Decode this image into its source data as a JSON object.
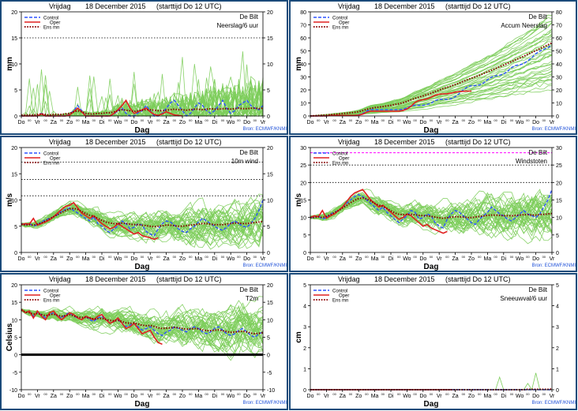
{
  "header": {
    "day": "Vrijdag",
    "date": "18 December 2015",
    "run": "(starttijd Do 12 UTC)"
  },
  "location": "De Bilt",
  "source": "Bron: ECMWF/KNMI",
  "legend": [
    "Control",
    "Oper",
    "Ens mn"
  ],
  "xlabel": "Dag",
  "day_labels": [
    "Do",
    "Vr",
    "Za",
    "Zo",
    "Ma",
    "Di",
    "Wo",
    "Do",
    "Vr",
    "Za",
    "Zo",
    "Ma",
    "Di",
    "Wo",
    "Do",
    "Vr"
  ],
  "colors": {
    "control": "#2e54ff",
    "oper": "#e02020",
    "ensmean": "#8b0000",
    "members": "#7ccd5a",
    "frame": "#1a4a7a",
    "threshold": "#ff00ff"
  },
  "chart_data": [
    {
      "type": "line",
      "name": "precip",
      "title": "Neerslag/6 uur",
      "ylabel": "mm",
      "ylim": [
        0,
        20
      ],
      "yticks": [
        0,
        5,
        10,
        15,
        20
      ],
      "ref_lines": [
        15
      ],
      "control": [
        0,
        0,
        0,
        0,
        0,
        0.5,
        0,
        0,
        0,
        0,
        0,
        0,
        0.3,
        1,
        2,
        1,
        0,
        0,
        0,
        0,
        0,
        0,
        0,
        0.4,
        1,
        1.5,
        0.5,
        0,
        0,
        0.6,
        1,
        2,
        1,
        0,
        0,
        0.5,
        1.5,
        2.5,
        3,
        2,
        1,
        0,
        0.5,
        1.5,
        2.5,
        2,
        1,
        0.5,
        1,
        2,
        3,
        1.5,
        0.5,
        1,
        2,
        2.5,
        3,
        2,
        1.5,
        1.2,
        2
      ],
      "oper": [
        0,
        0,
        0,
        0,
        0,
        0.4,
        0,
        0,
        0,
        0,
        0,
        0,
        0.2,
        0.8,
        1.5,
        0.8,
        0,
        0,
        0,
        0,
        0,
        0,
        0,
        0.5,
        1.2,
        2,
        3,
        1.5,
        0.5,
        0.8,
        1.2,
        1.5,
        0.8,
        0.3,
        0.1,
        0.4,
        0.8,
        0.5,
        0.2,
        0.1,
        0
      ],
      "ens_mean": [
        0.2,
        0.2,
        0.2,
        0.2,
        0.3,
        0.4,
        0.3,
        0.2,
        0.3,
        0.3,
        0.3,
        0.4,
        0.5,
        0.8,
        1,
        0.8,
        0.5,
        0.4,
        0.4,
        0.5,
        0.5,
        0.6,
        0.6,
        0.8,
        1,
        1.2,
        1.1,
        1,
        0.9,
        1,
        1.1,
        1.2,
        1.2,
        1.1,
        1,
        1,
        1.1,
        1.2,
        1.3,
        1.2,
        1.2,
        1.1,
        1.2,
        1.3,
        1.3,
        1.2,
        1.3,
        1.4,
        1.3,
        1.3,
        1.4,
        1.4,
        1.3,
        1.4,
        1.5,
        1.4,
        1.4,
        1.5,
        1.5,
        1.4,
        1.5
      ]
    },
    {
      "type": "line",
      "name": "accum",
      "title": "Accum Neerslag",
      "ylabel": "mm",
      "ylim": [
        0,
        80
      ],
      "yticks": [
        0,
        10,
        20,
        30,
        40,
        50,
        60,
        70,
        80
      ],
      "ref_lines": [],
      "control": [
        0,
        0,
        0,
        0,
        0,
        0.5,
        0.5,
        0.5,
        0.5,
        0.5,
        0.5,
        0.5,
        0.8,
        1.8,
        3.8,
        4.8,
        4.8,
        4.8,
        4.8,
        4.8,
        4.8,
        4.8,
        4.8,
        5.2,
        6.2,
        7.7,
        8.2,
        8.2,
        8.2,
        8.8,
        9.8,
        11.8,
        12.8,
        12.8,
        12.8,
        13.3,
        14.8,
        17.3,
        20.3,
        22.3,
        23.3,
        23.3,
        23.8,
        25.3,
        27.8,
        29.8,
        30.8,
        31.3,
        32.3,
        34.3,
        37.3,
        38.8,
        39.3,
        40.3,
        42.3,
        44.8,
        47.8,
        49.8,
        51.3,
        52.5,
        54.5
      ],
      "oper": [
        0,
        0,
        0,
        0,
        0,
        0.4,
        0.4,
        0.4,
        0.4,
        0.4,
        0.4,
        0.4,
        0.6,
        1.4,
        2.9,
        3.7,
        3.7,
        3.7,
        3.7,
        3.7,
        3.7,
        3.7,
        3.7,
        4.2,
        5.4,
        7.4,
        10.4,
        11.9,
        12.4,
        13.2,
        14.4,
        15.9,
        16.7,
        17,
        17.1,
        17.5,
        18.3,
        18.8,
        19,
        19.1,
        19.1
      ],
      "ens_mean": [
        0,
        0.2,
        0.4,
        0.6,
        0.8,
        1,
        1.3,
        1.5,
        1.8,
        2.1,
        2.4,
        2.8,
        3.3,
        4.1,
        5.1,
        5.9,
        6.4,
        6.8,
        7.2,
        7.7,
        8.2,
        8.8,
        9.4,
        10.2,
        11.2,
        12.4,
        13.5,
        14.5,
        15.4,
        16.4,
        17.5,
        18.7,
        19.9,
        21,
        22,
        23,
        24.1,
        25.3,
        26.6,
        27.8,
        29,
        30.1,
        31.3,
        32.6,
        33.9,
        35.1,
        36.4,
        37.8,
        39.1,
        40.4,
        41.8,
        43.2,
        44.5,
        45.9,
        47.4,
        48.8,
        50.2,
        51.7,
        53.2,
        54.6,
        56.1
      ]
    },
    {
      "type": "line",
      "name": "wind",
      "title": "10m wind",
      "ylabel": "m/s",
      "ylim": [
        0,
        20
      ],
      "yticks": [
        0,
        5,
        10,
        15,
        20
      ],
      "ref_lines": [
        10.8,
        13.9,
        17.2
      ],
      "control": [
        5.5,
        5.2,
        5.5,
        5,
        5.3,
        5.8,
        6.2,
        6.5,
        6.8,
        7.2,
        7.8,
        8.2,
        8.5,
        8,
        7.5,
        7,
        6.5,
        6,
        6.8,
        5.5,
        5,
        4.2,
        3.8,
        4.5,
        5,
        6,
        5.5,
        4.5,
        4.8,
        5.5,
        5.2,
        4,
        3.5,
        3.2,
        4.5,
        5.5,
        6,
        5.8,
        5.2,
        4.5,
        4,
        3.8,
        4.5,
        5,
        5.8,
        6.5,
        6,
        5.5,
        5,
        4.5,
        4.2,
        4.8,
        5.5,
        6,
        5.5,
        5,
        4.8,
        5.5,
        6.5,
        8,
        10
      ],
      "oper": [
        5.3,
        5.5,
        5.4,
        6.5,
        5.2,
        5.5,
        5.8,
        6.2,
        6.8,
        7.5,
        8.2,
        8.8,
        9,
        9.5,
        8.5,
        7.5,
        7,
        6.5,
        7,
        6.2,
        5.5,
        5,
        4.5,
        4.8,
        5.5,
        5,
        4.5,
        4,
        3.5,
        3.8,
        3.2,
        3,
        2.8,
        2.5,
        2.8
      ],
      "ens_mean": [
        5.4,
        5.2,
        5.3,
        5.2,
        5.4,
        5.6,
        6,
        6.4,
        6.8,
        7.2,
        7.6,
        8,
        8.3,
        8.4,
        8.2,
        7.8,
        7.4,
        7.1,
        6.9,
        6.5,
        6.1,
        5.8,
        5.6,
        5.5,
        5.5,
        5.6,
        5.5,
        5.4,
        5.3,
        5.3,
        5.2,
        5.1,
        5,
        4.9,
        5,
        5.1,
        5.2,
        5.2,
        5.1,
        5,
        5,
        5.1,
        5.2,
        5.3,
        5.4,
        5.5,
        5.5,
        5.4,
        5.3,
        5.3,
        5.3,
        5.4,
        5.5,
        5.6,
        5.6,
        5.5,
        5.5,
        5.6,
        5.7,
        5.8,
        5.9
      ]
    },
    {
      "type": "line",
      "name": "gust",
      "title": "Windstoten",
      "ylabel": "m/s",
      "ylim": [
        0,
        30
      ],
      "yticks": [
        0,
        5,
        10,
        15,
        20,
        25,
        30
      ],
      "ref_lines": [
        20,
        25
      ],
      "threshold_line": 28.5,
      "control": [
        10,
        10,
        10.5,
        9.5,
        10,
        11,
        11.5,
        12,
        13,
        14,
        15,
        16,
        16.5,
        16,
        15,
        14,
        13,
        12,
        13,
        11.5,
        10.5,
        9.5,
        8.5,
        9.5,
        10.5,
        12,
        11.5,
        9.5,
        10,
        11,
        10.5,
        8.5,
        7.5,
        7,
        9.5,
        11,
        12,
        11.5,
        10.5,
        9.5,
        8.5,
        8,
        9.5,
        10.5,
        11.5,
        13,
        12,
        11,
        10.5,
        9.5,
        9,
        10,
        11,
        12,
        11,
        10.5,
        10,
        11,
        13,
        15,
        18
      ],
      "oper": [
        10,
        10.5,
        10.2,
        12,
        9.8,
        10.5,
        11,
        12,
        13,
        14.5,
        16,
        17,
        17.5,
        18,
        16.5,
        15,
        14,
        13,
        13.5,
        12.5,
        11.5,
        10.5,
        9.5,
        10,
        11,
        10.5,
        9.5,
        8.5,
        7.5,
        8,
        7,
        6.5,
        6,
        5.5,
        6
      ],
      "ens_mean": [
        10,
        10,
        10.2,
        10,
        10.3,
        10.8,
        11.4,
        12,
        12.7,
        13.4,
        14.2,
        14.9,
        15.4,
        15.6,
        15.3,
        14.7,
        14,
        13.5,
        13.2,
        12.6,
        11.9,
        11.3,
        10.9,
        10.8,
        10.8,
        10.9,
        10.8,
        10.6,
        10.5,
        10.5,
        10.3,
        10.1,
        9.9,
        9.8,
        9.9,
        10.1,
        10.2,
        10.2,
        10.1,
        10,
        10,
        10.1,
        10.3,
        10.4,
        10.6,
        10.7,
        10.7,
        10.6,
        10.5,
        10.5,
        10.5,
        10.6,
        10.7,
        10.8,
        10.8,
        10.7,
        10.7,
        10.8,
        10.9,
        11,
        11.1
      ]
    },
    {
      "type": "line",
      "name": "temp",
      "title": "T2m",
      "ylabel": "Celsius",
      "ylim": [
        -10,
        20
      ],
      "yticks": [
        -10,
        -5,
        0,
        5,
        10,
        15,
        20
      ],
      "ref_lines": [],
      "zero_line": 0,
      "control": [
        13,
        12,
        12.5,
        11,
        12,
        11.5,
        10.5,
        11.5,
        12,
        11,
        10.5,
        11.5,
        12,
        11,
        10.5,
        10,
        11,
        10,
        9.5,
        10.5,
        11,
        10,
        9,
        9.5,
        10,
        9,
        8,
        8.5,
        9,
        8,
        7,
        7.5,
        8,
        7,
        6,
        5.5,
        6.5,
        7,
        8,
        7.5,
        7,
        6.5,
        7.5,
        8,
        7.5,
        6.5,
        6,
        6.5,
        7.5,
        8,
        7,
        6,
        5.5,
        6,
        7,
        7.5,
        6.5,
        5.5,
        5,
        6,
        6.5
      ],
      "oper": [
        13,
        12,
        12.5,
        10.5,
        12.5,
        11,
        10,
        12,
        12.5,
        11,
        10,
        11,
        12,
        11.5,
        10.5,
        10,
        11,
        10.5,
        10,
        11,
        11.5,
        10,
        9,
        9.5,
        10.5,
        9,
        7.5,
        8,
        9,
        7.5,
        6,
        6.5,
        7,
        5,
        3.5,
        3
      ],
      "ens_mean": [
        12.8,
        12.2,
        12,
        11.6,
        11.8,
        11.5,
        11.2,
        11.4,
        11.6,
        11.3,
        11,
        11.2,
        11.4,
        11.1,
        10.8,
        10.6,
        10.7,
        10.5,
        10.2,
        10.3,
        10.4,
        10.1,
        9.8,
        9.7,
        9.8,
        9.5,
        9.1,
        9,
        9.1,
        8.8,
        8.4,
        8.3,
        8.4,
        8.1,
        7.7,
        7.5,
        7.6,
        7.7,
        7.8,
        7.7,
        7.5,
        7.3,
        7.4,
        7.5,
        7.4,
        7.1,
        6.9,
        6.9,
        7,
        7.1,
        6.9,
        6.6,
        6.4,
        6.5,
        6.6,
        6.7,
        6.5,
        6.2,
        6,
        6.1,
        6.3
      ]
    },
    {
      "type": "line",
      "name": "snow",
      "title": "Sneeuwval/6 uur",
      "ylabel": "cm",
      "ylim": [
        0,
        5
      ],
      "yticks": [
        0,
        1,
        2,
        3,
        4,
        5
      ],
      "ref_lines": [],
      "control": [
        0,
        0,
        0,
        0,
        0,
        0,
        0,
        0,
        0,
        0,
        0,
        0,
        0,
        0,
        0,
        0,
        0,
        0,
        0,
        0,
        0,
        0,
        0,
        0,
        0,
        0,
        0,
        0,
        0,
        0,
        0,
        0,
        0,
        0,
        0,
        0,
        0,
        0,
        0,
        0,
        0,
        0,
        0,
        0,
        0,
        0,
        0,
        0,
        0,
        0,
        0,
        0,
        0,
        0,
        0,
        0,
        0,
        0,
        0,
        0,
        0
      ],
      "oper": [
        0,
        0,
        0,
        0,
        0,
        0,
        0,
        0,
        0,
        0,
        0,
        0,
        0,
        0,
        0,
        0,
        0,
        0,
        0,
        0,
        0,
        0,
        0,
        0,
        0,
        0,
        0,
        0,
        0,
        0,
        0,
        0,
        0,
        0,
        0,
        0
      ],
      "ens_mean": [
        0,
        0,
        0,
        0,
        0,
        0,
        0,
        0,
        0,
        0,
        0,
        0,
        0,
        0,
        0,
        0,
        0,
        0,
        0,
        0,
        0,
        0,
        0,
        0,
        0,
        0,
        0,
        0,
        0,
        0,
        0,
        0,
        0,
        0,
        0,
        0,
        0,
        0,
        0,
        0,
        0,
        0,
        0,
        0,
        0,
        0,
        0,
        0,
        0,
        0,
        0,
        0,
        0,
        0,
        0.02,
        0.02,
        0.02,
        0.02,
        0.02,
        0.02,
        0.03
      ]
    }
  ]
}
